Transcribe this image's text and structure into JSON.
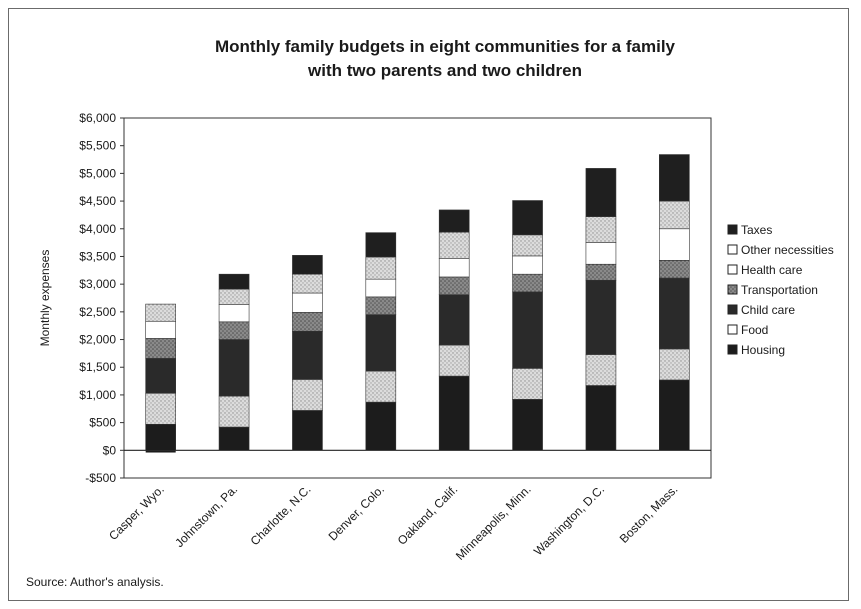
{
  "chart_data": {
    "type": "bar",
    "stacked": true,
    "title_lines": [
      "Monthly family budgets in eight communities for a family",
      "with two parents and two children"
    ],
    "ylabel": "Monthly expenses",
    "xlabel": "",
    "ylim": [
      -500,
      6000
    ],
    "yticks": [
      -500,
      0,
      500,
      1000,
      1500,
      2000,
      2500,
      3000,
      3500,
      4000,
      4500,
      5000,
      5500,
      6000
    ],
    "ytick_labels": [
      "-$500",
      "$0",
      "$500",
      "$1,000",
      "$1,500",
      "$2,000",
      "$2,500",
      "$3,000",
      "$3,500",
      "$4,000",
      "$4,500",
      "$5,000",
      "$5,500",
      "$6,000"
    ],
    "categories": [
      "Casper, Wyo.",
      "Johnstown, Pa.",
      "Charlotte, N.C.",
      "Denver, Colo.",
      "Oakland, Calif.",
      "Minneapolis, Minn.",
      "Washington, D.C.",
      "Boston, Mass."
    ],
    "legend_position": "right",
    "series": [
      {
        "name": "Housing",
        "color": "#1c1c1c",
        "values": [
          470,
          420,
          720,
          870,
          1340,
          920,
          1170,
          1270
        ]
      },
      {
        "name": "Food",
        "color": "#cfcfcf",
        "values": [
          560,
          560,
          560,
          560,
          560,
          560,
          560,
          560
        ]
      },
      {
        "name": "Child care",
        "color": "#2e2e2e",
        "values": [
          630,
          1020,
          870,
          1020,
          910,
          1380,
          1340,
          1280
        ]
      },
      {
        "name": "Transportation",
        "color": "#8a8a8a",
        "values": [
          360,
          320,
          340,
          320,
          320,
          320,
          290,
          320
        ]
      },
      {
        "name": "Health care",
        "color": "#ffffff",
        "values": [
          310,
          310,
          350,
          320,
          330,
          330,
          390,
          570
        ]
      },
      {
        "name": "Other necessities",
        "color": "#d6d6d6",
        "values": [
          310,
          280,
          340,
          400,
          480,
          380,
          470,
          500
        ]
      },
      {
        "name": "Taxes",
        "color": "#1f1f1f",
        "values": [
          0,
          270,
          340,
          440,
          400,
          620,
          870,
          840
        ]
      }
    ],
    "negative_values": {
      "Casper, Wyo.": -40
    },
    "legend_order": [
      "Taxes",
      "Other necessities",
      "Health care",
      "Transportation",
      "Child care",
      "Food",
      "Housing"
    ],
    "legend_markers": {
      "Taxes": "■",
      "Other necessities": "□",
      "Health care": "□",
      "Transportation": "▧",
      "Child care": "■",
      "Food": "□",
      "Housing": "■"
    },
    "source": "Source: Author's analysis."
  }
}
